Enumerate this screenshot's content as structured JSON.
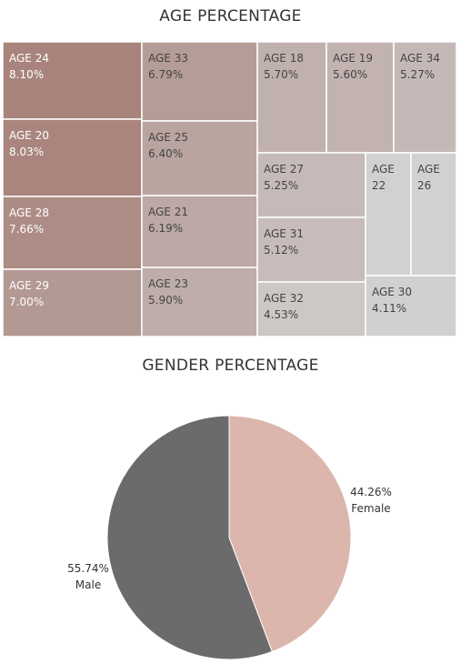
{
  "chart_data": [
    {
      "type": "treemap",
      "title": "AGE PERCENTAGE",
      "items": [
        {
          "label": "AGE 24",
          "value": "8.10%",
          "pct": 8.1
        },
        {
          "label": "AGE 20",
          "value": "8.03%",
          "pct": 8.03
        },
        {
          "label": "AGE 28",
          "value": "7.66%",
          "pct": 7.66
        },
        {
          "label": "AGE 29",
          "value": "7.00%",
          "pct": 7.0
        },
        {
          "label": "AGE 33",
          "value": "6.79%",
          "pct": 6.79
        },
        {
          "label": "AGE 25",
          "value": "6.40%",
          "pct": 6.4
        },
        {
          "label": "AGE 21",
          "value": "6.19%",
          "pct": 6.19
        },
        {
          "label": "AGE 23",
          "value": "5.90%",
          "pct": 5.9
        },
        {
          "label": "AGE 18",
          "value": "5.70%",
          "pct": 5.7
        },
        {
          "label": "AGE 19",
          "value": "5.60%",
          "pct": 5.6
        },
        {
          "label": "AGE 34",
          "value": "5.27%",
          "pct": 5.27
        },
        {
          "label": "AGE 27",
          "value": "5.25%",
          "pct": 5.25
        },
        {
          "label": "AGE 31",
          "value": "5.12%",
          "pct": 5.12
        },
        {
          "label": "AGE 32",
          "value": "4.53%",
          "pct": 4.53
        },
        {
          "label": "AGE 22",
          "value": ""
        },
        {
          "label": "AGE 26",
          "value": ""
        },
        {
          "label": "AGE 30",
          "value": "4.11%",
          "pct": 4.11
        }
      ]
    },
    {
      "type": "pie",
      "title": "GENDER PERCENTAGE",
      "slices": [
        {
          "label": "Female",
          "value": 44.26,
          "value_text": "44.26%",
          "color": "#dcb5ad"
        },
        {
          "label": "Male",
          "value": 55.74,
          "value_text": "55.74%",
          "color": "#6b6b6b"
        }
      ]
    }
  ]
}
